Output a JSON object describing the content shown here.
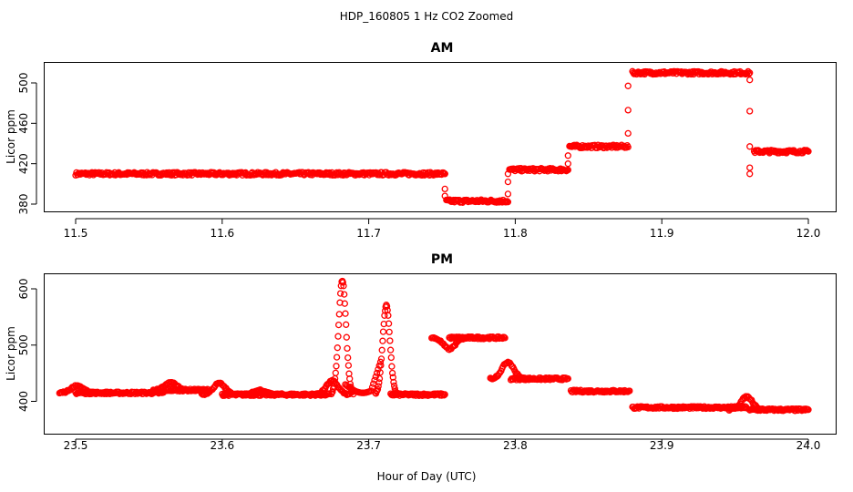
{
  "figure": {
    "title": "HDP_160805  1 Hz CO2 Zoomed",
    "xlabel": "Hour of Day (UTC)"
  },
  "colors": {
    "points": "#ff0000",
    "axes": "#000000"
  },
  "chart_data": [
    {
      "type": "scatter",
      "title": "AM",
      "xlabel": "",
      "ylabel": "Licor ppm",
      "xlim": [
        11.5,
        12.0
      ],
      "ylim": [
        380,
        520
      ],
      "xticks": [
        "11.5",
        "11.6",
        "11.7",
        "11.8",
        "11.9",
        "12.0"
      ],
      "yticks": [
        "380",
        "420",
        "460",
        "500"
      ],
      "grid": false,
      "segments": [
        {
          "x": [
            11.5,
            11.752
          ],
          "y": 410
        },
        {
          "x": [
            11.753,
            11.795
          ],
          "y": 383
        },
        {
          "x": [
            11.796,
            11.836
          ],
          "y": 414
        },
        {
          "x": [
            11.837,
            11.877
          ],
          "y": 437
        },
        {
          "x": [
            11.88,
            11.96
          ],
          "y": 510
        },
        {
          "x": [
            11.963,
            12.0
          ],
          "y": 432
        }
      ],
      "transitions": [
        {
          "x": 11.752,
          "y": [
            410,
            395,
            388
          ]
        },
        {
          "x": 11.795,
          "y": [
            390,
            402,
            410
          ]
        },
        {
          "x": 11.836,
          "y": [
            420,
            428
          ]
        },
        {
          "x": 11.877,
          "y": [
            450,
            473,
            497
          ]
        },
        {
          "x": 11.96,
          "y": [
            503,
            472,
            437,
            416,
            410
          ]
        }
      ]
    },
    {
      "type": "scatter",
      "title": "PM",
      "xlabel": "",
      "ylabel": "Licor ppm",
      "xlim": [
        23.5,
        24.0
      ],
      "ylim": [
        370,
        620
      ],
      "xticks": [
        "23.5",
        "23.6",
        "23.7",
        "23.8",
        "23.9",
        "24.0"
      ],
      "yticks": [
        "400",
        "500",
        "600"
      ],
      "grid": false,
      "segments": [
        {
          "x": [
            23.5,
            23.56
          ],
          "y": 415
        },
        {
          "x": [
            23.562,
            23.59
          ],
          "y": 420
        },
        {
          "x": [
            23.6,
            23.673
          ],
          "y": 412
        },
        {
          "x": [
            23.715,
            23.752
          ],
          "y": 412
        },
        {
          "x": [
            23.755,
            23.793
          ],
          "y": 513
        },
        {
          "x": [
            23.797,
            23.836
          ],
          "y": 440
        },
        {
          "x": [
            23.838,
            23.878
          ],
          "y": 418
        },
        {
          "x": [
            23.88,
            23.958
          ],
          "y": 389
        },
        {
          "x": [
            23.96,
            24.0
          ],
          "y": 385
        }
      ],
      "peaks": [
        {
          "x": 23.501,
          "y": 428
        },
        {
          "x": 23.565,
          "y": 433
        },
        {
          "x": 23.598,
          "y": 432
        },
        {
          "x": 23.626,
          "y": 420
        },
        {
          "x": 23.675,
          "y": 436
        },
        {
          "x": 23.682,
          "y": 615
        },
        {
          "x": 23.712,
          "y": 570
        },
        {
          "x": 23.755,
          "y": 493
        },
        {
          "x": 23.795,
          "y": 470
        },
        {
          "x": 23.958,
          "y": 408
        }
      ]
    }
  ]
}
